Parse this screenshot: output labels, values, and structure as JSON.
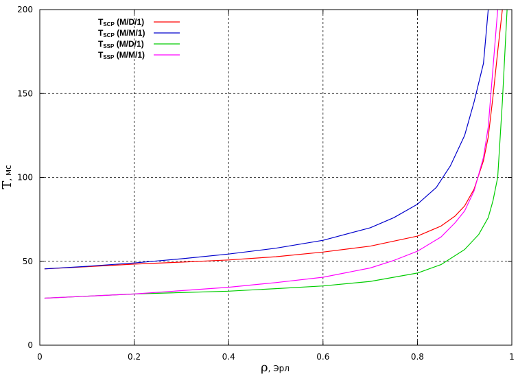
{
  "chart_data": {
    "type": "line",
    "xlabel": {
      "symbol": "ρ",
      "unit": ", Эрл"
    },
    "ylabel": {
      "symbol": "T",
      "unit": ", мс"
    },
    "xlim": [
      0,
      1
    ],
    "ylim": [
      0,
      200
    ],
    "xticks": [
      0,
      0.2,
      0.4,
      0.6,
      0.8,
      1
    ],
    "yticks": [
      0,
      50,
      100,
      150,
      200
    ],
    "xtick_labels": [
      "0",
      "0.2",
      "0.4",
      "0.6",
      "0.8",
      "1"
    ],
    "ytick_labels": [
      "0",
      "50",
      "100",
      "150",
      "200"
    ],
    "grid": true,
    "grid_style": "dashed",
    "legend_position": "top-left",
    "series": [
      {
        "name": "T_SCP (M/D/1)",
        "label_main": "T",
        "label_sub": "SCP",
        "label_rest": " (M/D/1)",
        "color": "#ff0000",
        "points": [
          [
            0.01,
            45.5
          ],
          [
            0.1,
            46.8
          ],
          [
            0.2,
            48.3
          ],
          [
            0.3,
            49.5
          ],
          [
            0.4,
            50.8
          ],
          [
            0.5,
            52.7
          ],
          [
            0.6,
            55.5
          ],
          [
            0.7,
            59.0
          ],
          [
            0.8,
            65.0
          ],
          [
            0.85,
            71.0
          ],
          [
            0.88,
            77.0
          ],
          [
            0.9,
            83.0
          ],
          [
            0.92,
            93.0
          ],
          [
            0.94,
            110.0
          ],
          [
            0.95,
            124.0
          ],
          [
            0.96,
            148.0
          ],
          [
            0.97,
            175.0
          ],
          [
            0.98,
            200.0
          ]
        ]
      },
      {
        "name": "T_SCP (M/M/1)",
        "label_main": "T",
        "label_sub": "SCP",
        "label_rest": " (M/M/1)",
        "color": "#0000cc",
        "points": [
          [
            0.01,
            45.5
          ],
          [
            0.1,
            47.0
          ],
          [
            0.2,
            49.0
          ],
          [
            0.3,
            51.5
          ],
          [
            0.4,
            54.3
          ],
          [
            0.5,
            57.8
          ],
          [
            0.6,
            62.5
          ],
          [
            0.7,
            70.0
          ],
          [
            0.75,
            76.0
          ],
          [
            0.8,
            84.0
          ],
          [
            0.84,
            94.0
          ],
          [
            0.87,
            107.0
          ],
          [
            0.9,
            125.0
          ],
          [
            0.92,
            145.0
          ],
          [
            0.94,
            168.0
          ],
          [
            0.95,
            200.0
          ]
        ]
      },
      {
        "name": "T_SSP (M/D/1)",
        "label_main": "T",
        "label_sub": "SSP",
        "label_rest": " (M/D/1)",
        "color": "#00cc00",
        "points": [
          [
            0.01,
            28.0
          ],
          [
            0.2,
            30.5
          ],
          [
            0.4,
            32.2
          ],
          [
            0.5,
            33.7
          ],
          [
            0.6,
            35.3
          ],
          [
            0.7,
            38.0
          ],
          [
            0.8,
            43.0
          ],
          [
            0.85,
            48.0
          ],
          [
            0.9,
            57.0
          ],
          [
            0.93,
            66.0
          ],
          [
            0.95,
            76.0
          ],
          [
            0.96,
            86.0
          ],
          [
            0.97,
            100.0
          ],
          [
            0.98,
            145.0
          ],
          [
            0.99,
            200.0
          ]
        ]
      },
      {
        "name": "T_SSP (M/M/1)",
        "label_main": "T",
        "label_sub": "SSP",
        "label_rest": " (M/M/1)",
        "color": "#ff00ff",
        "points": [
          [
            0.01,
            28.0
          ],
          [
            0.2,
            30.5
          ],
          [
            0.3,
            32.5
          ],
          [
            0.4,
            34.5
          ],
          [
            0.5,
            37.3
          ],
          [
            0.6,
            40.5
          ],
          [
            0.7,
            46.0
          ],
          [
            0.75,
            50.5
          ],
          [
            0.8,
            56.0
          ],
          [
            0.85,
            64.5
          ],
          [
            0.88,
            73.0
          ],
          [
            0.9,
            80.0
          ],
          [
            0.92,
            92.0
          ],
          [
            0.94,
            112.0
          ],
          [
            0.95,
            130.0
          ],
          [
            0.96,
            165.0
          ],
          [
            0.97,
            200.0
          ]
        ]
      }
    ]
  }
}
